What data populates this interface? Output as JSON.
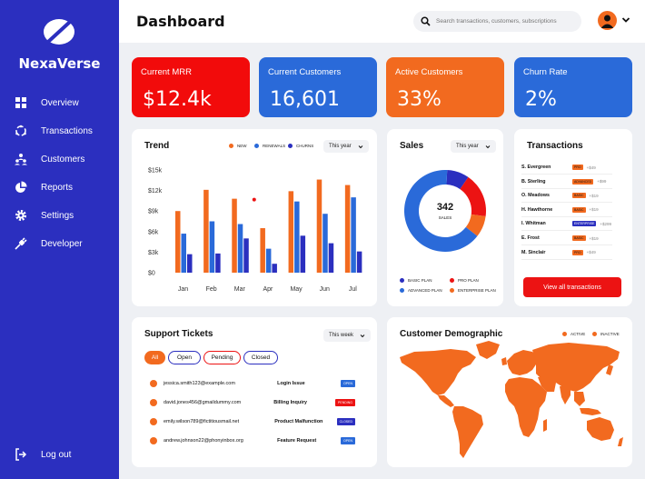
{
  "brand": {
    "name": "NexaVerse"
  },
  "sidebar": {
    "items": [
      {
        "label": "Overview"
      },
      {
        "label": "Transactions"
      },
      {
        "label": "Customers"
      },
      {
        "label": "Reports"
      },
      {
        "label": "Settings"
      },
      {
        "label": "Developer"
      }
    ],
    "logout": "Log out"
  },
  "header": {
    "title": "Dashboard",
    "search_placeholder": "Search transactions, customers, subscriptions"
  },
  "kpis": [
    {
      "label": "Current MRR",
      "value": "$12.4k",
      "color": "#f20b0b"
    },
    {
      "label": "Current Customers",
      "value": "16,601",
      "color": "#2a6ad9"
    },
    {
      "label": "Active Customers",
      "value": "33%",
      "color": "#f26a1f"
    },
    {
      "label": "Churn Rate",
      "value": "2%",
      "color": "#2a6ad9"
    }
  ],
  "trend": {
    "title": "Trend",
    "period": "This year",
    "legend": [
      "NEW",
      "RENEWALS",
      "CHURNS"
    ]
  },
  "chart_data": {
    "type": "bar",
    "title": "Trend",
    "categories": [
      "Jan",
      "Feb",
      "Mar",
      "Apr",
      "May",
      "Jun",
      "Jul"
    ],
    "series": [
      {
        "name": "NEW",
        "values": [
          9000,
          12100,
          10800,
          6500,
          11900,
          13600,
          12800
        ],
        "color": "#f26a1f"
      },
      {
        "name": "RENEWALS",
        "values": [
          5700,
          7500,
          7100,
          3500,
          10400,
          8600,
          11000
        ],
        "color": "#2a6ad9"
      },
      {
        "name": "CHURNS",
        "values": [
          2700,
          2800,
          5000,
          1300,
          5400,
          4300,
          3100
        ],
        "color": "#2b2fbf"
      }
    ],
    "yticks": [
      "$0",
      "$3k",
      "$6k",
      "$9k",
      "$12k",
      "$15k"
    ],
    "ylim": [
      0,
      15000
    ],
    "annotation": {
      "x": "Mar",
      "y": 10800,
      "color": "#ec1313"
    }
  },
  "sales": {
    "title": "Sales",
    "period": "This year",
    "total": "342",
    "total_label": "SALES",
    "segments": [
      {
        "name": "BASIC PLAN",
        "value": 30,
        "color": "#2b2fbf"
      },
      {
        "name": "PRO PLAN",
        "value": 60,
        "color": "#ec1313"
      },
      {
        "name": "ADVANCED PLAN",
        "value": 223,
        "color": "#2a6ad9"
      },
      {
        "name": "ENTERPRISE PLAN",
        "value": 29,
        "color": "#f26a1f"
      }
    ]
  },
  "transactions": {
    "title": "Transactions",
    "rows": [
      {
        "name": "S. Evergreen",
        "plan": "PRO",
        "amount": "+$49",
        "color": "#f26a1f"
      },
      {
        "name": "B. Sterling",
        "plan": "ADVANCED",
        "amount": "+$99",
        "color": "#f26a1f"
      },
      {
        "name": "O. Meadows",
        "plan": "BASIC",
        "amount": "+$19",
        "color": "#f26a1f"
      },
      {
        "name": "H. Hawthorne",
        "plan": "BASIC",
        "amount": "+$19",
        "color": "#f26a1f"
      },
      {
        "name": "I. Whitman",
        "plan": "ENTERPRISE",
        "amount": "+$299",
        "color": "#2b2fbf"
      },
      {
        "name": "E. Frost",
        "plan": "BASIC",
        "amount": "+$19",
        "color": "#f26a1f"
      },
      {
        "name": "M. Sinclair",
        "plan": "PRO",
        "amount": "+$49",
        "color": "#f26a1f"
      }
    ],
    "button": "View all transactions"
  },
  "tickets": {
    "title": "Support Tickets",
    "period": "This week",
    "filters": [
      "All",
      "Open",
      "Pending",
      "Closed"
    ],
    "rows": [
      {
        "email": "jessica.smith123@example.com",
        "subject": "Login Issue",
        "status": "OPEN",
        "color": "#2a6ad9"
      },
      {
        "email": "david.jones456@gmaildummy.com",
        "subject": "Billing Inquiry",
        "status": "PENDING",
        "color": "#ec1313"
      },
      {
        "email": "emily.wilson789@fictitiousmail.net",
        "subject": "Product Malfunction",
        "status": "CLOSED",
        "color": "#2b2fbf"
      },
      {
        "email": "andrew.johnson22@phonyinbox.org",
        "subject": "Feature Request",
        "status": "OPEN",
        "color": "#2a6ad9"
      }
    ]
  },
  "demographic": {
    "title": "Customer Demographic",
    "legend": [
      "ACTIVE",
      "INACTIVE"
    ],
    "map_color": "#f26a1f"
  }
}
